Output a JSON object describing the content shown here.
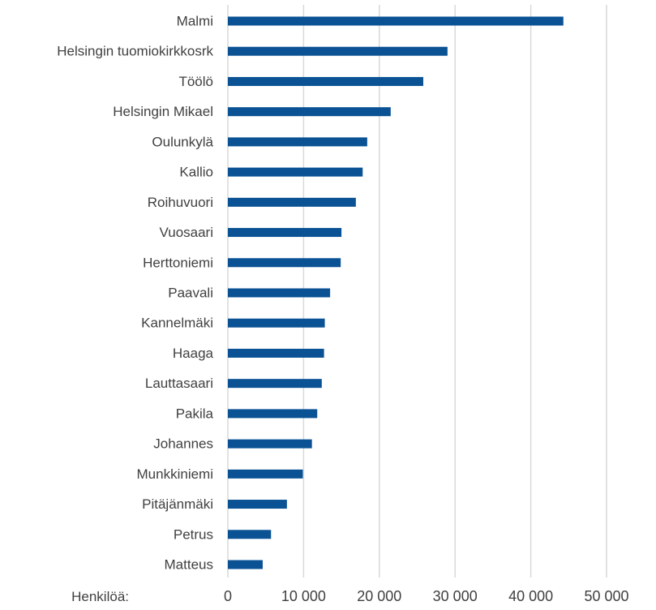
{
  "chart_data": {
    "type": "bar",
    "orientation": "horizontal",
    "categories": [
      "Malmi",
      "Helsingin tuomiokirkkosrk",
      "Töölö",
      "Helsingin Mikael",
      "Oulunkylä",
      "Kallio",
      "Roihuvuori",
      "Vuosaari",
      "Herttoniemi",
      "Paavali",
      "Kannelmäki",
      "Haaga",
      "Lauttasaari",
      "Pakila",
      "Johannes",
      "Munkkiniemi",
      "Pitäjänmäki",
      "Petrus",
      "Matteus"
    ],
    "values": [
      44300,
      29000,
      25800,
      21500,
      18400,
      17800,
      16900,
      15000,
      14900,
      13500,
      12800,
      12700,
      12400,
      11800,
      11100,
      9900,
      7800,
      5700,
      4600
    ],
    "xlim": [
      0,
      50000
    ],
    "ticks": [
      0,
      10000,
      20000,
      30000,
      40000,
      50000
    ],
    "tick_labels": [
      "0",
      "10 000",
      "20 000",
      "30 000",
      "40 000",
      "50 000"
    ],
    "xlabel": "Henkilöä:",
    "grid": true,
    "bar_color": "#0a5294"
  }
}
